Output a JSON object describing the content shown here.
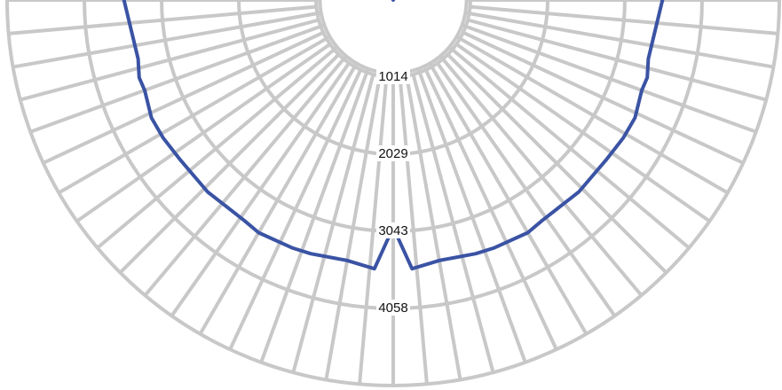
{
  "chart_data": {
    "type": "polar",
    "plot": "luminous intensity distribution (half-plane, nadir at bottom)",
    "title": "",
    "ring_values": [
      1014,
      2029,
      3043,
      4058
    ],
    "r_max": 5073,
    "grid": true,
    "grid_color": "#c8c8c8",
    "series": [
      {
        "color": "#3a53a4",
        "points": [
          {
            "angle": -180,
            "value": 0
          },
          {
            "angle": -145,
            "value": 4000
          },
          {
            "angle": -144,
            "value": 4000
          },
          {
            "angle": -132,
            "value": 3540
          },
          {
            "angle": -113,
            "value": 3440
          },
          {
            "angle": -92,
            "value": 3570
          },
          {
            "angle": -77,
            "value": 3440
          },
          {
            "angle": -73,
            "value": 3490
          },
          {
            "angle": -70,
            "value": 3475
          },
          {
            "angle": -64,
            "value": 3535
          },
          {
            "angle": -59,
            "value": 3525
          },
          {
            "angle": -53,
            "value": 3500
          },
          {
            "angle": -44,
            "value": 3510
          },
          {
            "angle": -34,
            "value": 3500
          },
          {
            "angle": -30,
            "value": 3535
          },
          {
            "angle": -22,
            "value": 3520
          },
          {
            "angle": -18,
            "value": 3510
          },
          {
            "angle": -10,
            "value": 3480
          },
          {
            "angle": -4,
            "value": 3545
          },
          {
            "angle": 0,
            "value": 2990
          },
          {
            "angle": 4,
            "value": 3545
          },
          {
            "angle": 10,
            "value": 3480
          },
          {
            "angle": 18,
            "value": 3510
          },
          {
            "angle": 22,
            "value": 3520
          },
          {
            "angle": 30,
            "value": 3535
          },
          {
            "angle": 34,
            "value": 3500
          },
          {
            "angle": 44,
            "value": 3510
          },
          {
            "angle": 53,
            "value": 3500
          },
          {
            "angle": 59,
            "value": 3525
          },
          {
            "angle": 64,
            "value": 3535
          },
          {
            "angle": 70,
            "value": 3475
          },
          {
            "angle": 73,
            "value": 3490
          },
          {
            "angle": 77,
            "value": 3440
          },
          {
            "angle": 92,
            "value": 3570
          },
          {
            "angle": 113,
            "value": 3440
          },
          {
            "angle": 132,
            "value": 3540
          },
          {
            "angle": 144,
            "value": 4000
          },
          {
            "angle": 145,
            "value": 4000
          },
          {
            "angle": 180,
            "value": 0
          }
        ]
      }
    ]
  }
}
